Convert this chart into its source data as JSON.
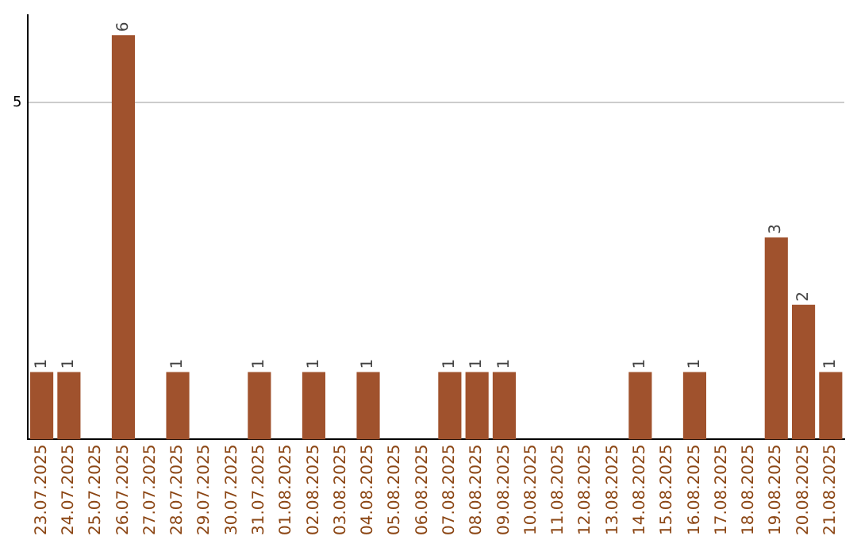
{
  "chart_data": {
    "type": "bar",
    "categories": [
      "23.07.2025",
      "24.07.2025",
      "25.07.2025",
      "26.07.2025",
      "27.07.2025",
      "28.07.2025",
      "29.07.2025",
      "30.07.2025",
      "31.07.2025",
      "01.08.2025",
      "02.08.2025",
      "03.08.2025",
      "04.08.2025",
      "05.08.2025",
      "06.08.2025",
      "07.08.2025",
      "08.08.2025",
      "09.08.2025",
      "10.08.2025",
      "11.08.2025",
      "12.08.2025",
      "13.08.2025",
      "14.08.2025",
      "15.08.2025",
      "16.08.2025",
      "17.08.2025",
      "18.08.2025",
      "19.08.2025",
      "20.08.2025",
      "21.08.2025"
    ],
    "values": [
      1,
      1,
      0,
      6,
      0,
      1,
      0,
      0,
      1,
      0,
      1,
      0,
      1,
      0,
      0,
      1,
      1,
      1,
      0,
      0,
      0,
      0,
      1,
      0,
      1,
      0,
      0,
      3,
      2,
      1
    ],
    "value_labels": [
      "1",
      "1",
      null,
      "6",
      null,
      "1",
      null,
      null,
      "1",
      null,
      "1",
      null,
      "1",
      null,
      null,
      "1",
      "1",
      "1",
      null,
      null,
      null,
      null,
      "1",
      null,
      "1",
      null,
      null,
      "3",
      "2",
      "1"
    ],
    "color": "#a0522d",
    "ylim": [
      0,
      6.3
    ],
    "yticks": [
      5
    ],
    "grid": "y",
    "legend": false
  }
}
